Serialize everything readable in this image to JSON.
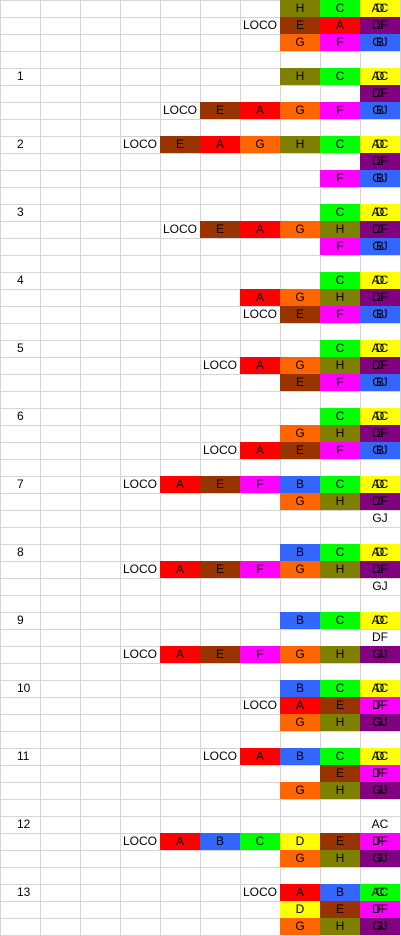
{
  "colors": {
    "H": "#808000",
    "C": "#00ff00",
    "D": "#ffff00",
    "E": "#993300",
    "A": "#ff0000",
    "J": "#800080",
    "G": "#ff6600",
    "F": "#ff00ff",
    "B": "#3366ff"
  },
  "loco_label": "LOCO",
  "sections": [
    {
      "step": "",
      "rows": [
        {
          "cars": [
            "",
            "",
            "",
            "",
            "",
            "",
            "H",
            "C",
            "D"
          ],
          "track": "AC"
        },
        {
          "cars": [
            "",
            "",
            "",
            "",
            "",
            "LOCO",
            "E",
            "A",
            "J"
          ],
          "track": "DF"
        },
        {
          "cars": [
            "",
            "",
            "",
            "",
            "",
            "",
            "G",
            "F",
            "B"
          ],
          "track": "GJ"
        }
      ]
    },
    {
      "step": "1",
      "rows": [
        {
          "cars": [
            "",
            "",
            "",
            "",
            "",
            "",
            "H",
            "C",
            "D"
          ],
          "track": "AC"
        },
        {
          "cars": [
            "",
            "",
            "",
            "",
            "",
            "",
            "",
            "",
            "J"
          ],
          "track": "DF"
        },
        {
          "cars": [
            "",
            "",
            "",
            "LOCO",
            "E",
            "A",
            "G",
            "F",
            "B"
          ],
          "track": "GJ"
        }
      ]
    },
    {
      "step": "2",
      "rows": [
        {
          "cars": [
            "",
            "",
            "LOCO",
            "E",
            "A",
            "G",
            "H",
            "C",
            "D"
          ],
          "track": "AC"
        },
        {
          "cars": [
            "",
            "",
            "",
            "",
            "",
            "",
            "",
            "",
            "J"
          ],
          "track": "DF"
        },
        {
          "cars": [
            "",
            "",
            "",
            "",
            "",
            "",
            "",
            "F",
            "B"
          ],
          "track": "GJ"
        }
      ]
    },
    {
      "step": "3",
      "rows": [
        {
          "cars": [
            "",
            "",
            "",
            "",
            "",
            "",
            "",
            "C",
            "D"
          ],
          "track": "AC"
        },
        {
          "cars": [
            "",
            "",
            "",
            "LOCO",
            "E",
            "A",
            "G",
            "H",
            "J"
          ],
          "track": "DF"
        },
        {
          "cars": [
            "",
            "",
            "",
            "",
            "",
            "",
            "",
            "F",
            "B"
          ],
          "track": "GJ"
        }
      ]
    },
    {
      "step": "4",
      "rows": [
        {
          "cars": [
            "",
            "",
            "",
            "",
            "",
            "",
            "",
            "C",
            "D"
          ],
          "track": "AC"
        },
        {
          "cars": [
            "",
            "",
            "",
            "",
            "",
            "A",
            "G",
            "H",
            "J"
          ],
          "track": "DF"
        },
        {
          "cars": [
            "",
            "",
            "",
            "",
            "",
            "LOCO",
            "E",
            "F",
            "B"
          ],
          "track": "GJ"
        }
      ]
    },
    {
      "step": "5",
      "rows": [
        {
          "cars": [
            "",
            "",
            "",
            "",
            "",
            "",
            "",
            "C",
            "D"
          ],
          "track": "AC"
        },
        {
          "cars": [
            "",
            "",
            "",
            "",
            "LOCO",
            "A",
            "G",
            "H",
            "J"
          ],
          "track": "DF"
        },
        {
          "cars": [
            "",
            "",
            "",
            "",
            "",
            "",
            "E",
            "F",
            "B"
          ],
          "track": "GJ"
        }
      ]
    },
    {
      "step": "6",
      "rows": [
        {
          "cars": [
            "",
            "",
            "",
            "",
            "",
            "",
            "",
            "C",
            "D"
          ],
          "track": "AC"
        },
        {
          "cars": [
            "",
            "",
            "",
            "",
            "",
            "",
            "G",
            "H",
            "J"
          ],
          "track": "DF"
        },
        {
          "cars": [
            "",
            "",
            "",
            "",
            "LOCO",
            "A",
            "E",
            "F",
            "B"
          ],
          "track": "GJ"
        }
      ]
    },
    {
      "step": "7",
      "rows": [
        {
          "cars": [
            "",
            "",
            "LOCO",
            "A",
            "E",
            "F",
            "B",
            "C",
            "D"
          ],
          "track": "AC"
        },
        {
          "cars": [
            "",
            "",
            "",
            "",
            "",
            "",
            "G",
            "H",
            "J"
          ],
          "track": "DF"
        },
        {
          "cars": [
            "",
            "",
            "",
            "",
            "",
            "",
            "",
            "",
            ""
          ],
          "track": "GJ"
        }
      ]
    },
    {
      "step": "8",
      "rows": [
        {
          "cars": [
            "",
            "",
            "",
            "",
            "",
            "",
            "B",
            "C",
            "D"
          ],
          "track": "AC"
        },
        {
          "cars": [
            "",
            "",
            "LOCO",
            "A",
            "E",
            "F",
            "G",
            "H",
            "J"
          ],
          "track": "DF"
        },
        {
          "cars": [
            "",
            "",
            "",
            "",
            "",
            "",
            "",
            "",
            ""
          ],
          "track": "GJ"
        }
      ]
    },
    {
      "step": "9",
      "rows": [
        {
          "cars": [
            "",
            "",
            "",
            "",
            "",
            "",
            "B",
            "C",
            "D"
          ],
          "track": "AC"
        },
        {
          "cars": [
            "",
            "",
            "",
            "",
            "",
            "",
            "",
            "",
            ""
          ],
          "track": "DF"
        },
        {
          "cars": [
            "",
            "",
            "LOCO",
            "A",
            "E",
            "F",
            "G",
            "H",
            "J"
          ],
          "track": "GJ"
        }
      ]
    },
    {
      "step": "10",
      "rows": [
        {
          "cars": [
            "",
            "",
            "",
            "",
            "",
            "",
            "B",
            "C",
            "D"
          ],
          "track": "AC"
        },
        {
          "cars": [
            "",
            "",
            "",
            "",
            "",
            "LOCO",
            "A",
            "E",
            "F"
          ],
          "track": "DF"
        },
        {
          "cars": [
            "",
            "",
            "",
            "",
            "",
            "",
            "G",
            "H",
            "J"
          ],
          "track": "GJ"
        }
      ]
    },
    {
      "step": "11",
      "rows": [
        {
          "cars": [
            "",
            "",
            "",
            "",
            "LOCO",
            "A",
            "B",
            "C",
            "D"
          ],
          "track": "AC"
        },
        {
          "cars": [
            "",
            "",
            "",
            "",
            "",
            "",
            "",
            "E",
            "F"
          ],
          "track": "DF"
        },
        {
          "cars": [
            "",
            "",
            "",
            "",
            "",
            "",
            "G",
            "H",
            "J"
          ],
          "track": "GJ"
        }
      ]
    },
    {
      "step": "12",
      "rows": [
        {
          "cars": [
            "",
            "",
            "",
            "",
            "",
            "",
            "",
            "",
            ""
          ],
          "track": "AC"
        },
        {
          "cars": [
            "",
            "",
            "LOCO",
            "A",
            "B",
            "C",
            "D",
            "E",
            "F"
          ],
          "track": "DF"
        },
        {
          "cars": [
            "",
            "",
            "",
            "",
            "",
            "",
            "G",
            "H",
            "J"
          ],
          "track": "GJ"
        }
      ]
    },
    {
      "step": "13",
      "rows": [
        {
          "cars": [
            "",
            "",
            "",
            "",
            "",
            "LOCO",
            "A",
            "B",
            "C"
          ],
          "track": "AC"
        },
        {
          "cars": [
            "",
            "",
            "",
            "",
            "",
            "",
            "D",
            "E",
            "F"
          ],
          "track": "DF"
        },
        {
          "cars": [
            "",
            "",
            "",
            "",
            "",
            "",
            "G",
            "H",
            "J"
          ],
          "track": "GJ"
        }
      ]
    }
  ]
}
